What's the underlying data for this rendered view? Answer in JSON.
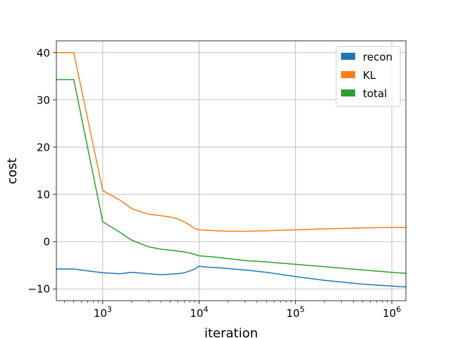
{
  "chart_data": {
    "type": "line",
    "title": "",
    "xlabel": "iteration",
    "ylabel": "cost",
    "xscale": "log",
    "xlim": [
      330,
      1400000
    ],
    "ylim": [
      -12.5,
      42.5
    ],
    "grid": true,
    "legend_position": "top-right",
    "x_ticks": [
      {
        "value": 1000,
        "mantissa": "10",
        "exponent": "3"
      },
      {
        "value": 10000,
        "mantissa": "10",
        "exponent": "4"
      },
      {
        "value": 100000,
        "mantissa": "10",
        "exponent": "5"
      },
      {
        "value": 1000000,
        "mantissa": "10",
        "exponent": "6"
      }
    ],
    "y_ticks": [
      {
        "value": 40,
        "label": "40"
      },
      {
        "value": 30,
        "label": "30"
      },
      {
        "value": 20,
        "label": "20"
      },
      {
        "value": 10,
        "label": "10"
      },
      {
        "value": 0,
        "label": "0"
      },
      {
        "value": -10,
        "label": "−10"
      }
    ],
    "series": [
      {
        "name": "recon",
        "color": "#1f77b4",
        "x": [
          330,
          500,
          1000,
          1500,
          2000,
          3000,
          4000,
          5000,
          6000,
          7000,
          8000,
          9000,
          10000,
          12000,
          15000,
          20000,
          30000,
          50000,
          100000,
          200000,
          500000,
          1000000,
          1400000
        ],
        "y": [
          -5.8,
          -5.8,
          -6.6,
          -6.8,
          -6.5,
          -6.8,
          -7.0,
          -6.9,
          -6.8,
          -6.6,
          -6.2,
          -5.8,
          -5.2,
          -5.4,
          -5.5,
          -5.7,
          -6.0,
          -6.5,
          -7.4,
          -8.2,
          -9.0,
          -9.4,
          -9.6
        ]
      },
      {
        "name": "KL",
        "color": "#ff7f0e",
        "x": [
          330,
          500,
          1000,
          1500,
          2000,
          2500,
          3000,
          4000,
          5000,
          6000,
          7000,
          8000,
          9000,
          10000,
          15000,
          20000,
          30000,
          50000,
          100000,
          200000,
          500000,
          1000000,
          1400000
        ],
        "y": [
          40.0,
          40.0,
          10.8,
          8.8,
          7.0,
          6.3,
          5.8,
          5.5,
          5.2,
          4.8,
          4.2,
          3.5,
          2.8,
          2.5,
          2.3,
          2.2,
          2.2,
          2.3,
          2.5,
          2.7,
          2.9,
          3.0,
          3.0
        ]
      },
      {
        "name": "total",
        "color": "#2ca02c",
        "x": [
          330,
          500,
          1000,
          1500,
          2000,
          3000,
          4000,
          5000,
          6000,
          7000,
          8000,
          9000,
          10000,
          15000,
          20000,
          30000,
          50000,
          100000,
          200000,
          500000,
          1000000,
          1400000
        ],
        "y": [
          34.3,
          34.3,
          4.2,
          2.0,
          0.3,
          -1.1,
          -1.6,
          -1.8,
          -2.0,
          -2.2,
          -2.4,
          -2.7,
          -3.0,
          -3.3,
          -3.6,
          -4.0,
          -4.3,
          -4.8,
          -5.3,
          -6.0,
          -6.5,
          -6.7
        ]
      }
    ]
  }
}
